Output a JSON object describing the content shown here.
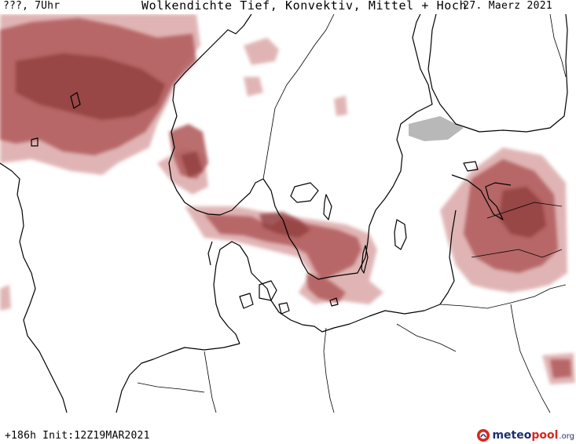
{
  "header": {
    "left_label": "???, 7Uhr",
    "title": "Wolkendichte  Tief, Konvektiv, Mittel + Hoch",
    "date": "27. Maerz 2021"
  },
  "footer": {
    "init_text": "+186h Init:12Z19MAR2021",
    "brand": {
      "meteo": "meteo",
      "pool": "pool",
      "tld": ".org"
    }
  },
  "colors": {
    "cloud_dark": "#8e3a3a",
    "cloud_mid": "#b35f5f",
    "cloud_light": "#dba8a8",
    "coastline": "#000000",
    "background": "#ffffff",
    "brand_navy": "#1d2f6f",
    "brand_red": "#d8261e"
  }
}
